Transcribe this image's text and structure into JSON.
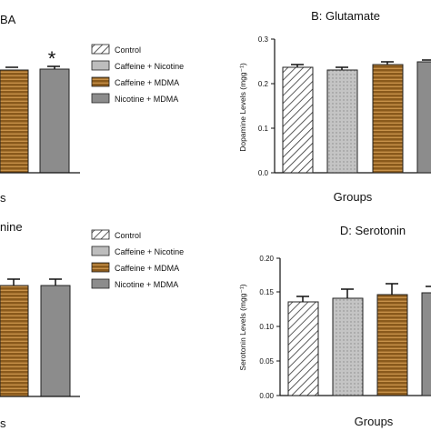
{
  "legend_entries": [
    "Control",
    "Caffeine + Nicotine",
    "Caffeine + MDMA",
    "Nicotine + MDMA"
  ],
  "chart_data": [
    {
      "type": "bar",
      "title": "BA",
      "xlabel": "s",
      "ylabel": "",
      "series": [
        {
          "name": "Caffeine + MDMA",
          "values": [
            null
          ]
        },
        {
          "name": "Nicotine + MDMA",
          "values": [
            null
          ]
        }
      ],
      "annotations": [
        "*"
      ],
      "legend": "right"
    },
    {
      "type": "bar",
      "title": "B: Glutamate",
      "xlabel": "Groups",
      "ylabel": "Dopamine Levels (mgg⁻¹)",
      "ylim": [
        0,
        0.3
      ],
      "yticks": [
        "0.0",
        "0.1",
        "0.2",
        "0.3"
      ],
      "categories": [
        "Control",
        "Caffeine + Nicotine",
        "Caffeine + MDMA",
        "Nicotine + MDMA"
      ],
      "values": [
        0.237,
        0.231,
        0.243,
        0.248
      ],
      "errors": [
        0.006,
        0.005,
        0.007,
        0.006
      ]
    },
    {
      "type": "bar",
      "title": "nine",
      "xlabel": "s",
      "ylabel": "",
      "series": [
        {
          "name": "Caffeine + MDMA",
          "values": [
            null
          ]
        },
        {
          "name": "Nicotine + MDMA",
          "values": [
            null
          ]
        }
      ],
      "legend": "right"
    },
    {
      "type": "bar",
      "title": "D: Serotonin",
      "xlabel": "Groups",
      "ylabel": "Serotonin Levels (mgg⁻¹)",
      "ylim": [
        0,
        0.2
      ],
      "yticks": [
        "0.00",
        "0.05",
        "0.10",
        "0.15",
        "0.20"
      ],
      "categories": [
        "Control",
        "Caffeine + Nicotine",
        "Caffeine + MDMA",
        "Nicotine + MDMA"
      ],
      "values": [
        0.136,
        0.141,
        0.146,
        0.148
      ],
      "errors": [
        0.007,
        0.013,
        0.015,
        0.01
      ]
    }
  ]
}
